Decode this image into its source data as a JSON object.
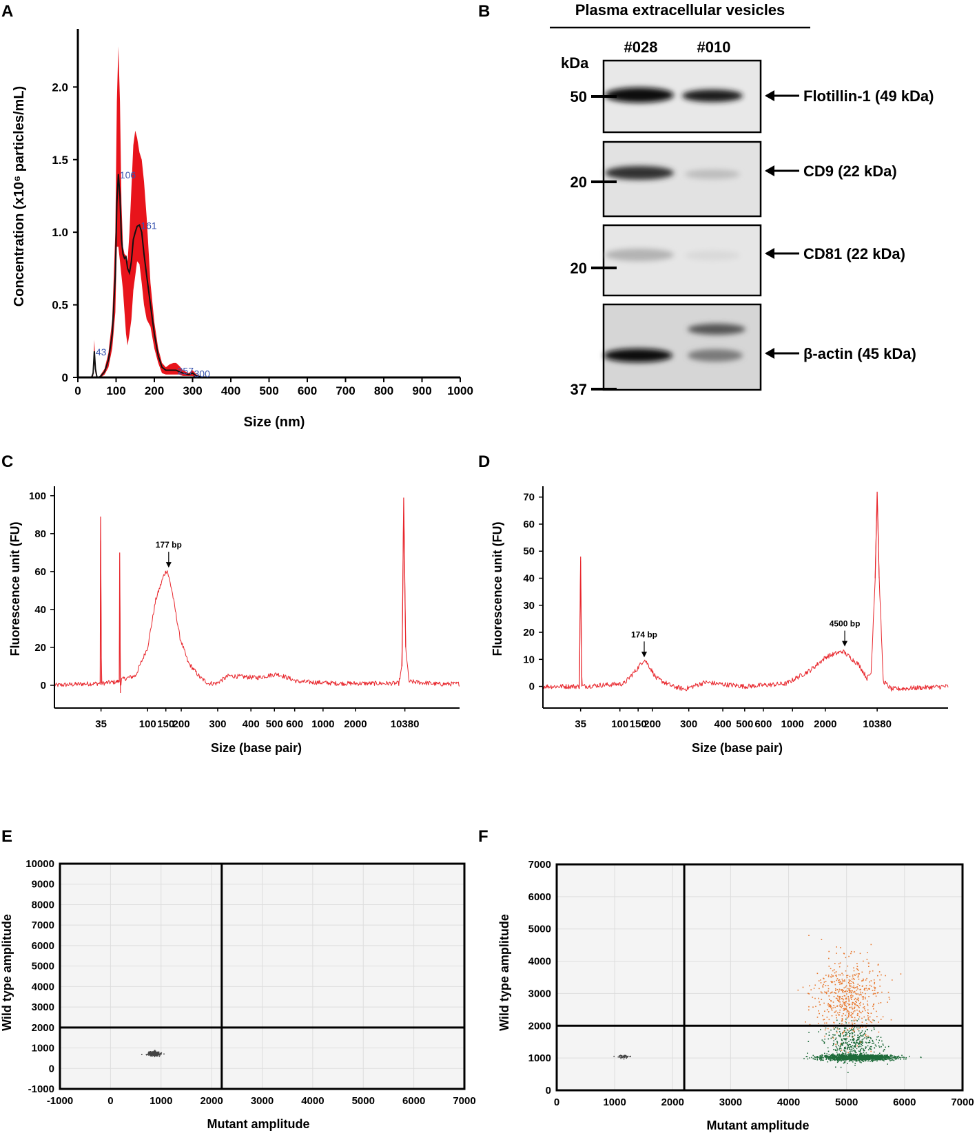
{
  "colors": {
    "nta": "#e8141b",
    "bio": "#e8262c",
    "orange": "#e8782e",
    "green": "#1e6b3a",
    "grey": "#444444"
  },
  "chart_data": [
    {
      "panel": "A",
      "type": "line",
      "xlabel": "Size (nm)",
      "ylabel": "Concentration (x10⁶ particles/mL)",
      "xlim": [
        0,
        1000
      ],
      "ylim": [
        0,
        2.4
      ],
      "xticks": [
        0,
        100,
        200,
        300,
        400,
        500,
        600,
        700,
        800,
        900,
        1000
      ],
      "yticks": [
        {
          "v": 0,
          "t": "0"
        },
        {
          "v": 0.5,
          "t": "0.5"
        },
        {
          "v": 1.0,
          "t": "1.0"
        },
        {
          "v": 1.5,
          "t": "1.5"
        },
        {
          "v": 2.0,
          "t": "2.0"
        }
      ],
      "x": [
        30,
        36,
        40,
        43,
        46,
        50,
        55,
        60,
        70,
        80,
        90,
        98,
        102,
        106,
        110,
        114,
        118,
        122,
        126,
        130,
        135,
        140,
        145,
        150,
        155,
        161,
        167,
        173,
        180,
        190,
        200,
        210,
        220,
        230,
        240,
        250,
        257,
        265,
        275,
        290,
        300,
        310,
        330,
        360,
        400,
        1000
      ],
      "mean": [
        0,
        0,
        0.03,
        0.18,
        0.06,
        0,
        0,
        0.01,
        0.04,
        0.12,
        0.3,
        0.7,
        1.2,
        1.4,
        1.25,
        0.95,
        0.85,
        0.82,
        0.83,
        0.75,
        0.72,
        0.8,
        0.95,
        1.0,
        1.04,
        1.05,
        1.0,
        0.85,
        0.7,
        0.5,
        0.3,
        0.15,
        0.07,
        0.05,
        0.05,
        0.05,
        0.05,
        0.04,
        0.03,
        0.02,
        0.03,
        0.01,
        0,
        0,
        0,
        0
      ],
      "upper": [
        0,
        0,
        0.05,
        0.26,
        0.09,
        0,
        0,
        0.02,
        0.06,
        0.17,
        0.4,
        1.0,
        1.9,
        2.28,
        1.9,
        1.2,
        0.9,
        0.85,
        0.84,
        0.8,
        1.0,
        1.3,
        1.6,
        1.7,
        1.65,
        1.55,
        1.5,
        1.35,
        1.1,
        0.65,
        0.38,
        0.2,
        0.1,
        0.07,
        0.09,
        0.1,
        0.1,
        0.08,
        0.05,
        0.03,
        0.05,
        0.02,
        0,
        0,
        0,
        0
      ],
      "lower": [
        0,
        0,
        0.01,
        0.1,
        0.03,
        0,
        0,
        0,
        0.02,
        0.07,
        0.2,
        0.45,
        0.9,
        0.9,
        0.8,
        0.7,
        0.6,
        0.45,
        0.3,
        0.22,
        0.3,
        0.4,
        0.6,
        0.7,
        0.8,
        0.78,
        0.65,
        0.5,
        0.4,
        0.35,
        0.2,
        0.1,
        0.03,
        0.02,
        0.02,
        0.02,
        0.02,
        0.02,
        0.01,
        0.01,
        0.01,
        0,
        0,
        0,
        0,
        0
      ],
      "peaks": [
        {
          "x": 43,
          "y": 0.18,
          "label": "43"
        },
        {
          "x": 106,
          "y": 1.4,
          "label": "106"
        },
        {
          "x": 161,
          "y": 1.05,
          "label": "161"
        },
        {
          "x": 257,
          "y": 0.05,
          "label": "257"
        },
        {
          "x": 300,
          "y": 0.03,
          "label": "300"
        }
      ]
    },
    {
      "panel": "C",
      "type": "line",
      "xlabel": "Size (base pair)",
      "ylabel": "Fluorescence unit (FU)",
      "ylim": [
        -12,
        105
      ],
      "yticks": [
        {
          "v": 0,
          "t": "0"
        },
        {
          "v": 20,
          "t": "20"
        },
        {
          "v": 40,
          "t": "40"
        },
        {
          "v": 60,
          "t": "60"
        },
        {
          "v": 80,
          "t": "80"
        },
        {
          "v": 100,
          "t": "100"
        }
      ],
      "xticks": [
        {
          "p": 0.115,
          "t": "35"
        },
        {
          "p": 0.23,
          "t": "100"
        },
        {
          "p": 0.275,
          "t": "150"
        },
        {
          "p": 0.313,
          "t": "200"
        },
        {
          "p": 0.403,
          "t": "300"
        },
        {
          "p": 0.485,
          "t": "400"
        },
        {
          "p": 0.543,
          "t": "500"
        },
        {
          "p": 0.593,
          "t": "600"
        },
        {
          "p": 0.663,
          "t": "1000"
        },
        {
          "p": 0.743,
          "t": "2000"
        },
        {
          "p": 0.865,
          "t": "10380"
        }
      ],
      "profile": [
        [
          0,
          0
        ],
        [
          0.08,
          0.8
        ],
        [
          0.113,
          1
        ],
        [
          0.114,
          89
        ],
        [
          0.116,
          1
        ],
        [
          0.16,
          2
        ],
        [
          0.161,
          70
        ],
        [
          0.163,
          -4
        ],
        [
          0.165,
          3
        ],
        [
          0.2,
          5
        ],
        [
          0.23,
          20
        ],
        [
          0.25,
          45
        ],
        [
          0.27,
          58
        ],
        [
          0.278,
          61
        ],
        [
          0.29,
          50
        ],
        [
          0.31,
          25
        ],
        [
          0.33,
          12
        ],
        [
          0.36,
          4
        ],
        [
          0.38,
          1
        ],
        [
          0.4,
          1
        ],
        [
          0.43,
          5
        ],
        [
          0.5,
          4
        ],
        [
          0.55,
          6
        ],
        [
          0.6,
          2
        ],
        [
          0.7,
          1
        ],
        [
          0.8,
          1
        ],
        [
          0.85,
          1
        ],
        [
          0.858,
          10
        ],
        [
          0.862,
          99
        ],
        [
          0.867,
          20
        ],
        [
          0.875,
          2
        ],
        [
          0.95,
          0.6
        ],
        [
          1.0,
          0.8
        ]
      ],
      "annotations": [
        {
          "p": 0.282,
          "y": 61,
          "label": "177 bp"
        }
      ]
    },
    {
      "panel": "D",
      "type": "line",
      "xlabel": "Size (base pair)",
      "ylabel": "Fluorescence unit (FU)",
      "ylim": [
        -8,
        74
      ],
      "yticks": [
        {
          "v": 0,
          "t": "0"
        },
        {
          "v": 10,
          "t": "10"
        },
        {
          "v": 20,
          "t": "20"
        },
        {
          "v": 30,
          "t": "30"
        },
        {
          "v": 40,
          "t": "40"
        },
        {
          "v": 50,
          "t": "50"
        },
        {
          "v": 60,
          "t": "60"
        },
        {
          "v": 70,
          "t": "70"
        }
      ],
      "xticks": [
        {
          "p": 0.093,
          "t": "35"
        },
        {
          "p": 0.19,
          "t": "100"
        },
        {
          "p": 0.235,
          "t": "150"
        },
        {
          "p": 0.27,
          "t": "200"
        },
        {
          "p": 0.36,
          "t": "300"
        },
        {
          "p": 0.444,
          "t": "400"
        },
        {
          "p": 0.498,
          "t": "500"
        },
        {
          "p": 0.544,
          "t": "600"
        },
        {
          "p": 0.616,
          "t": "1000"
        },
        {
          "p": 0.697,
          "t": "2000"
        },
        {
          "p": 0.825,
          "t": "10380"
        }
      ],
      "profile": [
        [
          0,
          0
        ],
        [
          0.09,
          0
        ],
        [
          0.093,
          48
        ],
        [
          0.096,
          0
        ],
        [
          0.2,
          1
        ],
        [
          0.23,
          6
        ],
        [
          0.25,
          10
        ],
        [
          0.26,
          8
        ],
        [
          0.28,
          3
        ],
        [
          0.32,
          0
        ],
        [
          0.35,
          -1
        ],
        [
          0.4,
          1.5
        ],
        [
          0.43,
          1
        ],
        [
          0.5,
          0
        ],
        [
          0.6,
          1
        ],
        [
          0.66,
          6
        ],
        [
          0.7,
          11
        ],
        [
          0.74,
          13
        ],
        [
          0.78,
          8
        ],
        [
          0.8,
          3
        ],
        [
          0.81,
          5
        ],
        [
          0.82,
          40
        ],
        [
          0.825,
          72
        ],
        [
          0.83,
          40
        ],
        [
          0.84,
          2
        ],
        [
          0.86,
          -1
        ],
        [
          1.0,
          0
        ]
      ],
      "annotations": [
        {
          "p": 0.25,
          "y": 10,
          "label": "174 bp"
        },
        {
          "p": 0.745,
          "y": 14,
          "label": "4500 bp"
        }
      ]
    },
    {
      "panel": "E",
      "type": "scatter",
      "xlabel": "Mutant amplitude",
      "ylabel": "Wild type amplitude",
      "xlim": [
        -1000,
        7000
      ],
      "ylim": [
        -1000,
        10000
      ],
      "xticks": [
        -1000,
        0,
        1000,
        2000,
        3000,
        4000,
        5000,
        6000,
        7000
      ],
      "yticks": [
        -1000,
        0,
        1000,
        2000,
        3000,
        4000,
        5000,
        6000,
        7000,
        8000,
        9000,
        10000
      ],
      "thresholds": {
        "x": 2200,
        "y": 2000
      },
      "clusters": [
        {
          "name": "double-negative",
          "x": 850,
          "y": 750,
          "sx": 60,
          "sy": 50,
          "n": 300,
          "color": "grey"
        }
      ]
    },
    {
      "panel": "F",
      "type": "scatter",
      "xlabel": "Mutant amplitude",
      "ylabel": "Wild type amplitude",
      "xlim": [
        0,
        7000
      ],
      "ylim": [
        0,
        7000
      ],
      "xticks": [
        0,
        1000,
        2000,
        3000,
        4000,
        5000,
        6000,
        7000
      ],
      "yticks": [
        0,
        1000,
        2000,
        3000,
        4000,
        5000,
        6000,
        7000
      ],
      "thresholds": {
        "x": 2200,
        "y": 2000
      },
      "clusters": [
        {
          "name": "double-negative",
          "x": 1150,
          "y": 1060,
          "sx": 60,
          "sy": 25,
          "n": 50,
          "color": "grey"
        },
        {
          "name": "mutant-positive",
          "x": 5200,
          "y": 1030,
          "sx": 300,
          "sy": 40,
          "n": 1600,
          "color": "green"
        },
        {
          "name": "mutant-positive-rain",
          "x": 5100,
          "y": 1450,
          "sx": 250,
          "sy": 300,
          "n": 400,
          "color": "green"
        },
        {
          "name": "double-positive",
          "x": 5000,
          "y": 2900,
          "sx": 280,
          "sy": 600,
          "n": 550,
          "color": "orange"
        }
      ]
    }
  ],
  "panels": {
    "A": "A",
    "B": "B",
    "C": "C",
    "D": "D",
    "E": "E",
    "F": "F"
  },
  "western_blot": {
    "title": "Plasma extracellular vesicles",
    "samples": [
      "#028",
      "#010"
    ],
    "unit": "kDa",
    "markers": [
      "50",
      "20",
      "20",
      "37"
    ],
    "proteins": [
      "Flotillin-1 (49 kDa)",
      "CD9 (22 kDa)",
      "CD81 (22 kDa)",
      "β-actin (45 kDa)"
    ]
  }
}
